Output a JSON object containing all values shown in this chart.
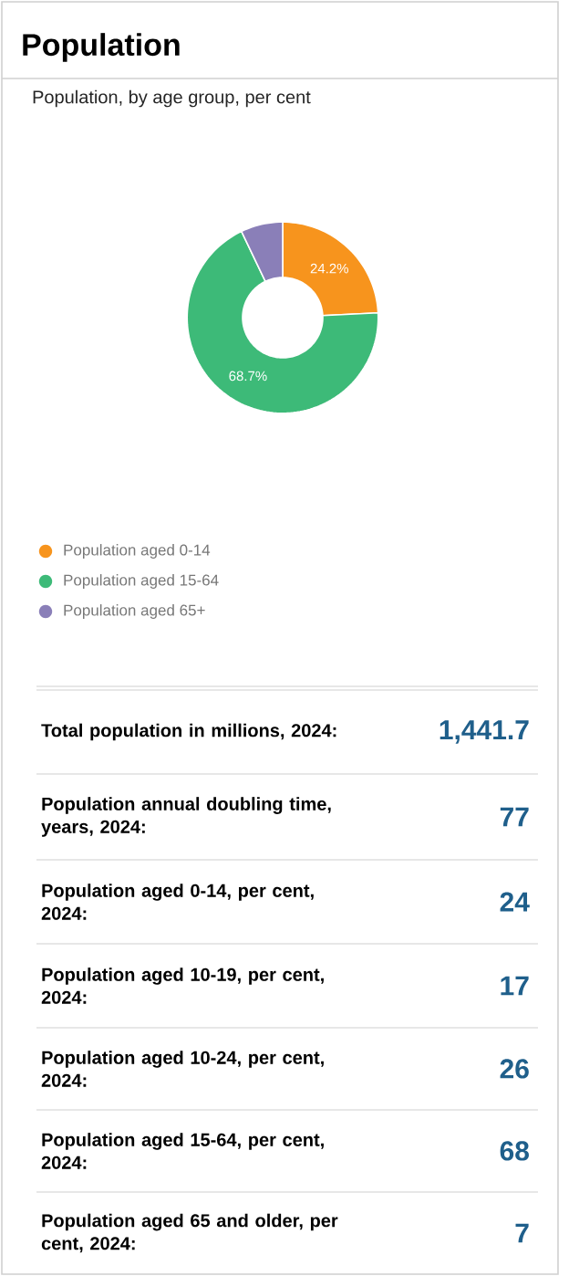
{
  "chart_data": [
    {
      "type": "donut",
      "title": "Population",
      "subtitle": "Population, by age group, per cent",
      "categories": [
        "Population aged 0-14",
        "Population aged 15-64",
        "Population aged 65+"
      ],
      "values": [
        24.2,
        68.7,
        7.1
      ],
      "colors": [
        "#f7941d",
        "#3dba78",
        "#8a7fb8"
      ],
      "value_labels": [
        "24.2%",
        "68.7%",
        null
      ],
      "legend": "bottom left"
    },
    {
      "type": "other",
      "annotations": [
        "Total population in millions, 2024:",
        "1,441.7",
        "Population annual doubling time, years, 2024:",
        "77",
        "Population aged 0-14, per cent, 2024:",
        "24",
        "Population aged 10-19, per cent, 2024:",
        "17",
        "Population aged 10-24, per cent, 2024:",
        "26",
        "Population aged 15-64, per cent, 2024:",
        "68",
        "Population aged 65 and older, per cent, 2024:",
        "7"
      ]
    }
  ]
}
